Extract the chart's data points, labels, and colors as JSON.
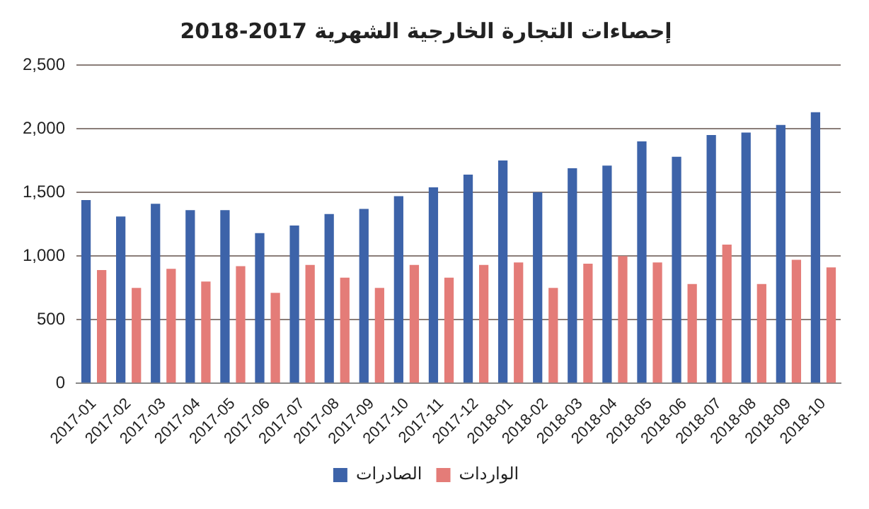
{
  "chart_data": {
    "type": "bar",
    "title": "إحصاءات التجارة الخارجية الشهرية 2017-2018",
    "categories": [
      "2017-01",
      "2017-02",
      "2017-03",
      "2017-04",
      "2017-05",
      "2017-06",
      "2017-07",
      "2017-08",
      "2017-09",
      "2017-10",
      "2017-11",
      "2017-12",
      "2018-01",
      "2018-02",
      "2018-03",
      "2018-04",
      "2018-05",
      "2018-06",
      "2018-07",
      "2018-08",
      "2018-09",
      "2018-10"
    ],
    "series": [
      {
        "name": "الصادرات",
        "color": "#3d63a9",
        "values": [
          1440,
          1310,
          1410,
          1360,
          1360,
          1180,
          1240,
          1330,
          1370,
          1470,
          1540,
          1640,
          1750,
          1500,
          1690,
          1710,
          1900,
          1780,
          1950,
          1970,
          2030,
          2130
        ]
      },
      {
        "name": "الواردات",
        "color": "#e47c78",
        "values": [
          890,
          750,
          900,
          800,
          920,
          710,
          930,
          830,
          750,
          930,
          830,
          930,
          950,
          750,
          940,
          1000,
          950,
          780,
          1090,
          780,
          970,
          910
        ]
      }
    ],
    "ylim": [
      0,
      2500
    ],
    "yticks": [
      {
        "value": 0,
        "label": "0"
      },
      {
        "value": 500,
        "label": "500"
      },
      {
        "value": 1000,
        "label": "1,000"
      },
      {
        "value": 1500,
        "label": "1,500"
      },
      {
        "value": 2000,
        "label": "2,000"
      },
      {
        "value": 2500,
        "label": "2,500"
      }
    ],
    "grid": "y",
    "legend": "bottom"
  }
}
